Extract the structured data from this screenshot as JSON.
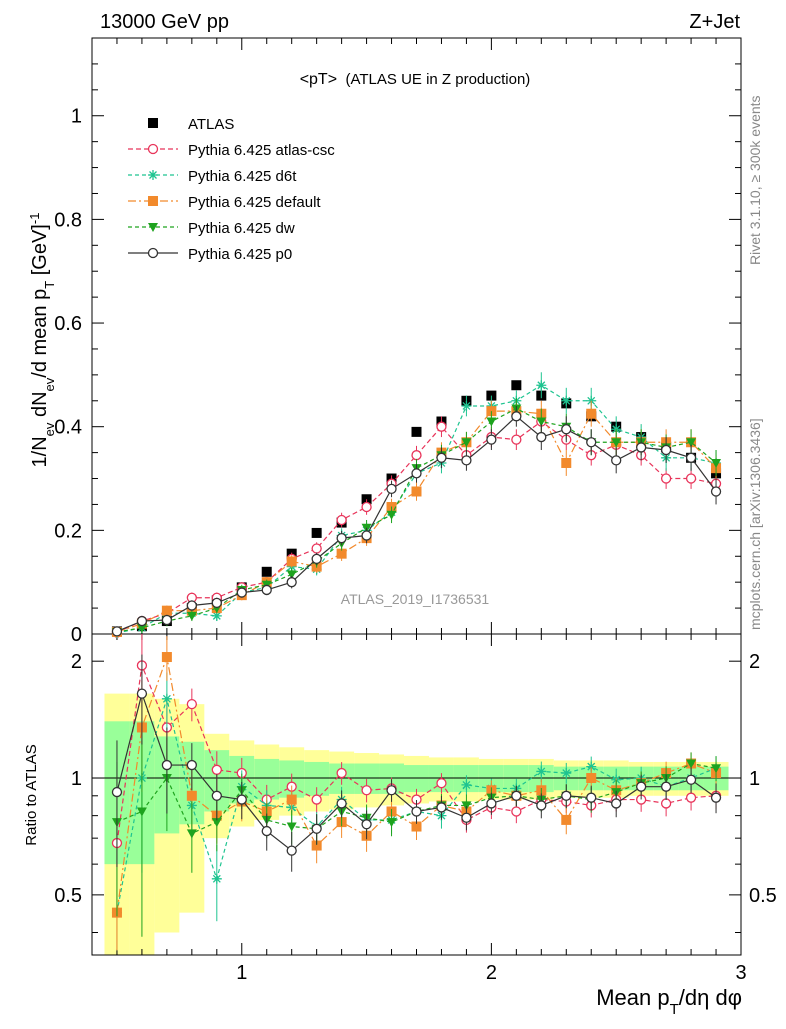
{
  "header": {
    "left": "13000 GeV pp",
    "right": "Z+Jet"
  },
  "side_labels": {
    "rivet": "Rivet 3.1.10, ≥ 300k events",
    "mcplots": "mcplots.cern.ch [arXiv:1306.3436]"
  },
  "watermark": "ATLAS_2019_I1736531",
  "main": {
    "title_main": "<pT>",
    "title_sub": "(ATLAS UE in Z production)",
    "ylabel": "1/N_ev dN_ev/d mean p_T [GeV]^-1",
    "yticks": [
      "0",
      "0.2",
      "0.4",
      "0.6",
      "0.8",
      "1"
    ]
  },
  "ratio": {
    "ylabel": "Ratio to ATLAS",
    "yticks": [
      "0.5",
      "1",
      "2"
    ],
    "xticks": [
      "1",
      "2",
      "3"
    ],
    "xlabel": "Mean p_T/dη dφ"
  },
  "legend": [
    {
      "label": "ATLAS",
      "color": "#000000",
      "marker": "square-filled"
    },
    {
      "label": "Pythia 6.425 atlas-csc",
      "color": "#e8345a",
      "marker": "circle-open"
    },
    {
      "label": "Pythia 6.425 d6t",
      "color": "#1ec490",
      "marker": "asterisk"
    },
    {
      "label": "Pythia 6.425 default",
      "color": "#f28a2c",
      "marker": "square-filled"
    },
    {
      "label": "Pythia 6.425 dw",
      "color": "#1ea31e",
      "marker": "triangle-down"
    },
    {
      "label": "Pythia 6.425 p0",
      "color": "#333333",
      "marker": "circle-open"
    }
  ],
  "chart_data": {
    "type": "scatter",
    "x": [
      0.5,
      0.6,
      0.7,
      0.8,
      0.9,
      1.0,
      1.1,
      1.2,
      1.3,
      1.4,
      1.5,
      1.6,
      1.7,
      1.8,
      1.9,
      2.0,
      2.1,
      2.2,
      2.3,
      2.4,
      2.5,
      2.6,
      2.7,
      2.8,
      2.9
    ],
    "xlim": [
      0.4,
      3.0
    ],
    "ylim": [
      0,
      1.15
    ],
    "ratio_ylim": [
      0.35,
      2.35
    ],
    "ratio_scale": "log",
    "series": [
      {
        "name": "ATLAS",
        "values": [
          0.005,
          0.015,
          0.025,
          0.05,
          0.065,
          0.09,
          0.12,
          0.155,
          0.195,
          0.215,
          0.26,
          0.3,
          0.39,
          0.41,
          0.45,
          0.46,
          0.48,
          0.46,
          0.445,
          0.42,
          0.4,
          0.38,
          0.36,
          0.34,
          0.31
        ],
        "band_stat": [
          0.4,
          0.4,
          0.28,
          0.24,
          0.18,
          0.14,
          0.12,
          0.11,
          0.1,
          0.09,
          0.09,
          0.09,
          0.08,
          0.08,
          0.08,
          0.08,
          0.08,
          0.08,
          0.07,
          0.07,
          0.07,
          0.07,
          0.07,
          0.07,
          0.07
        ],
        "band_tot": [
          0.65,
          0.65,
          0.6,
          0.55,
          0.3,
          0.25,
          0.22,
          0.2,
          0.18,
          0.17,
          0.16,
          0.15,
          0.14,
          0.13,
          0.13,
          0.12,
          0.12,
          0.12,
          0.11,
          0.11,
          0.11,
          0.1,
          0.1,
          0.1,
          0.1
        ]
      },
      {
        "name": "Pythia 6.425 atlas-csc",
        "values": [
          0.003,
          0.025,
          0.04,
          0.07,
          0.07,
          0.09,
          0.1,
          0.145,
          0.165,
          0.22,
          0.245,
          0.29,
          0.345,
          0.4,
          0.345,
          0.38,
          0.375,
          0.41,
          0.375,
          0.345,
          0.365,
          0.345,
          0.3,
          0.3,
          0.29
        ],
        "err": [
          0.005,
          0.01,
          0.01,
          0.01,
          0.01,
          0.01,
          0.01,
          0.012,
          0.012,
          0.014,
          0.015,
          0.016,
          0.018,
          0.02,
          0.02,
          0.02,
          0.02,
          0.02,
          0.02,
          0.02,
          0.02,
          0.02,
          0.02,
          0.02,
          0.02
        ]
      },
      {
        "name": "Pythia 6.425 d6t",
        "values": [
          0.002,
          0.012,
          0.04,
          0.04,
          0.035,
          0.08,
          0.09,
          0.13,
          0.125,
          0.19,
          0.2,
          0.235,
          0.31,
          0.33,
          0.44,
          0.44,
          0.45,
          0.48,
          0.45,
          0.45,
          0.395,
          0.38,
          0.34,
          0.34,
          0.33
        ],
        "err": [
          0.005,
          0.01,
          0.01,
          0.01,
          0.01,
          0.01,
          0.01,
          0.012,
          0.012,
          0.014,
          0.015,
          0.016,
          0.018,
          0.02,
          0.02,
          0.02,
          0.02,
          0.025,
          0.025,
          0.025,
          0.025,
          0.025,
          0.025,
          0.025,
          0.025
        ]
      },
      {
        "name": "Pythia 6.425 default",
        "values": [
          0.004,
          0.02,
          0.045,
          0.045,
          0.05,
          0.075,
          0.1,
          0.14,
          0.13,
          0.155,
          0.185,
          0.245,
          0.275,
          0.35,
          0.37,
          0.43,
          0.43,
          0.425,
          0.33,
          0.425,
          0.37,
          0.37,
          0.37,
          0.37,
          0.32
        ],
        "err": [
          0.005,
          0.01,
          0.01,
          0.01,
          0.01,
          0.01,
          0.01,
          0.012,
          0.012,
          0.014,
          0.015,
          0.016,
          0.018,
          0.02,
          0.02,
          0.02,
          0.02,
          0.025,
          0.025,
          0.025,
          0.025,
          0.025,
          0.025,
          0.025,
          0.025
        ]
      },
      {
        "name": "Pythia 6.425 dw",
        "values": [
          0.004,
          0.012,
          0.025,
          0.035,
          0.05,
          0.085,
          0.095,
          0.115,
          0.14,
          0.175,
          0.205,
          0.23,
          0.32,
          0.345,
          0.37,
          0.41,
          0.435,
          0.41,
          0.4,
          0.37,
          0.37,
          0.37,
          0.36,
          0.37,
          0.33
        ],
        "err": [
          0.005,
          0.01,
          0.01,
          0.01,
          0.01,
          0.01,
          0.01,
          0.012,
          0.012,
          0.014,
          0.015,
          0.016,
          0.018,
          0.02,
          0.02,
          0.02,
          0.02,
          0.025,
          0.025,
          0.025,
          0.025,
          0.025,
          0.025,
          0.025,
          0.025
        ]
      },
      {
        "name": "Pythia 6.425 p0",
        "values": [
          0.005,
          0.025,
          0.027,
          0.055,
          0.06,
          0.08,
          0.085,
          0.1,
          0.145,
          0.185,
          0.19,
          0.28,
          0.31,
          0.34,
          0.335,
          0.375,
          0.42,
          0.38,
          0.395,
          0.37,
          0.335,
          0.36,
          0.355,
          0.34,
          0.275
        ],
        "err": [
          0.005,
          0.01,
          0.01,
          0.01,
          0.01,
          0.01,
          0.01,
          0.012,
          0.012,
          0.014,
          0.015,
          0.016,
          0.018,
          0.02,
          0.02,
          0.02,
          0.02,
          0.025,
          0.025,
          0.025,
          0.025,
          0.025,
          0.025,
          0.025,
          0.025
        ]
      }
    ],
    "ratios": [
      [
        0.68,
        1.95,
        1.35,
        1.55,
        1.05,
        1.03,
        0.88,
        0.95,
        0.88,
        1.03,
        0.93,
        0.94,
        0.88,
        0.97,
        0.78,
        0.84,
        0.82,
        0.88,
        0.87,
        0.85,
        0.88,
        0.88,
        0.86,
        0.89,
        0.9
      ],
      [
        0.45,
        1.0,
        1.6,
        0.85,
        0.55,
        0.95,
        0.85,
        0.84,
        0.75,
        0.88,
        0.78,
        0.78,
        0.82,
        0.8,
        0.96,
        0.94,
        0.94,
        1.04,
        1.03,
        1.07,
        0.99,
        1.0,
        0.95,
        1.0,
        1.06
      ],
      [
        0.45,
        1.35,
        2.05,
        0.9,
        0.8,
        0.87,
        0.82,
        0.88,
        0.67,
        0.77,
        0.71,
        0.82,
        0.75,
        0.85,
        0.82,
        0.93,
        0.9,
        0.93,
        0.78,
        1.0,
        0.93,
        0.97,
        1.03,
        1.09,
        1.03
      ],
      [
        0.77,
        0.82,
        1.0,
        0.72,
        0.77,
        0.93,
        0.78,
        0.75,
        0.74,
        0.82,
        0.79,
        0.77,
        0.82,
        0.85,
        0.85,
        0.89,
        0.9,
        0.88,
        0.9,
        0.88,
        0.92,
        0.97,
        1.0,
        1.09,
        1.06
      ],
      [
        0.92,
        1.65,
        1.08,
        1.08,
        0.9,
        0.88,
        0.73,
        0.65,
        0.74,
        0.86,
        0.76,
        0.93,
        0.82,
        0.84,
        0.79,
        0.86,
        0.9,
        0.85,
        0.9,
        0.89,
        0.86,
        0.95,
        0.95,
        0.99,
        0.89
      ]
    ]
  }
}
